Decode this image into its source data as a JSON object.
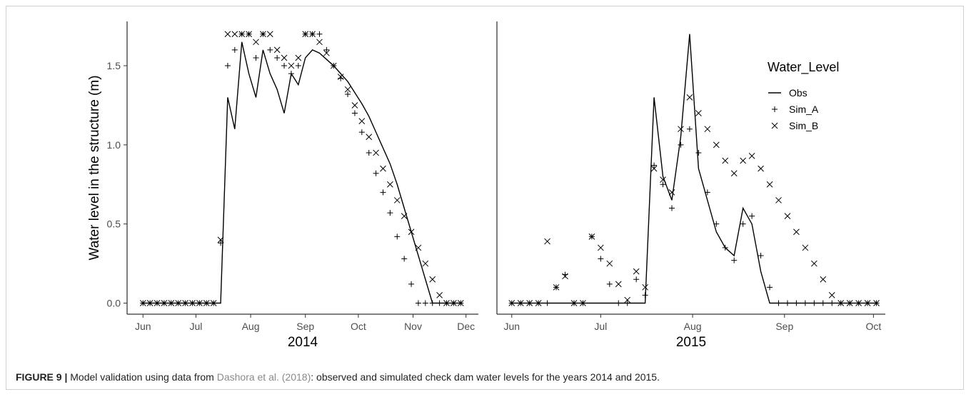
{
  "chart_data": [
    {
      "type": "line",
      "x_label": "2014",
      "y_label": "Water level in the structure (m)",
      "x": [
        152,
        156,
        160,
        164,
        168,
        172,
        176,
        180,
        184,
        188,
        192,
        196,
        200,
        204,
        208,
        212,
        216,
        220,
        224,
        228,
        232,
        236,
        240,
        244,
        248,
        252,
        256,
        260,
        264,
        268,
        272,
        276,
        280,
        284,
        288,
        292,
        296,
        300,
        304,
        308,
        312,
        316,
        320,
        324,
        328,
        332
      ],
      "series": [
        {
          "name": "Obs",
          "color": "#000000",
          "marker": "line",
          "values": [
            0,
            0,
            0,
            0,
            0,
            0,
            0,
            0,
            0,
            0,
            0,
            0,
            1.3,
            1.1,
            1.65,
            1.45,
            1.3,
            1.6,
            1.45,
            1.35,
            1.2,
            1.45,
            1.38,
            1.55,
            1.6,
            1.58,
            1.54,
            1.5,
            1.45,
            1.4,
            1.33,
            1.26,
            1.18,
            1.08,
            0.98,
            0.88,
            0.75,
            0.6,
            0.45,
            0.3,
            0.15,
            0,
            0,
            0,
            0,
            0
          ]
        },
        {
          "name": "Sim_A",
          "color": "#000000",
          "marker": "plus",
          "values": [
            0,
            0,
            0,
            0,
            0,
            0,
            0,
            0,
            0,
            0,
            0,
            0.38,
            1.5,
            1.6,
            1.7,
            1.7,
            1.55,
            1.7,
            1.6,
            1.55,
            1.5,
            1.45,
            1.5,
            1.7,
            1.7,
            1.7,
            1.6,
            1.5,
            1.42,
            1.32,
            1.2,
            1.08,
            0.95,
            0.82,
            0.7,
            0.57,
            0.42,
            0.28,
            0.12,
            0,
            0,
            0,
            0,
            0,
            0,
            0
          ]
        },
        {
          "name": "Sim_B",
          "color": "#000000",
          "marker": "cross",
          "values": [
            0,
            0,
            0,
            0,
            0,
            0,
            0,
            0,
            0,
            0,
            0,
            0.4,
            1.7,
            1.7,
            1.7,
            1.7,
            1.65,
            1.7,
            1.7,
            1.6,
            1.55,
            1.5,
            1.55,
            1.7,
            1.7,
            1.65,
            1.58,
            1.5,
            1.43,
            1.35,
            1.25,
            1.15,
            1.05,
            0.95,
            0.85,
            0.75,
            0.65,
            0.55,
            0.45,
            0.35,
            0.25,
            0.15,
            0.05,
            0,
            0,
            0
          ]
        }
      ],
      "xlim": [
        143,
        342
      ],
      "xticks": [
        {
          "value": 152,
          "label": "Jun"
        },
        {
          "value": 182,
          "label": "Jul"
        },
        {
          "value": 213,
          "label": "Aug"
        },
        {
          "value": 244,
          "label": "Sep"
        },
        {
          "value": 274,
          "label": "Oct"
        },
        {
          "value": 305,
          "label": "Nov"
        },
        {
          "value": 335,
          "label": "Dec"
        }
      ],
      "ylim": [
        -0.07,
        1.78
      ],
      "yticks": [
        {
          "value": 0,
          "label": "0.0"
        },
        {
          "value": 0.5,
          "label": "0.5"
        },
        {
          "value": 1,
          "label": "1.0"
        },
        {
          "value": 1.5,
          "label": "1.5"
        }
      ],
      "grid": false
    },
    {
      "type": "line",
      "x_label": "2015",
      "legend_title": "Water_Level",
      "legend": "top-right",
      "x": [
        152,
        155,
        158,
        161,
        164,
        167,
        170,
        173,
        176,
        179,
        182,
        185,
        188,
        191,
        194,
        197,
        200,
        203,
        206,
        209,
        212,
        215,
        218,
        221,
        224,
        227,
        230,
        233,
        236,
        239,
        242,
        245,
        248,
        251,
        254,
        257,
        260,
        263,
        266,
        269,
        272,
        275
      ],
      "series": [
        {
          "name": "Obs",
          "color": "#000000",
          "marker": "line",
          "values": [
            0,
            0,
            0,
            0,
            0,
            0,
            0,
            0,
            0,
            0,
            0,
            0,
            0,
            0,
            0,
            0,
            1.3,
            0.8,
            0.65,
            1.05,
            1.7,
            0.85,
            0.65,
            0.45,
            0.35,
            0.3,
            0.6,
            0.5,
            0.2,
            0,
            0,
            0,
            0,
            0,
            0,
            0,
            0,
            0,
            0,
            0,
            0,
            0
          ]
        },
        {
          "name": "Sim_A",
          "color": "#000000",
          "marker": "plus",
          "values": [
            0,
            0,
            0,
            0,
            0,
            0.1,
            0.18,
            0,
            0,
            0.42,
            0.28,
            0.12,
            0,
            0,
            0.15,
            0.05,
            0.87,
            0.75,
            0.6,
            1.0,
            1.1,
            0.95,
            0.7,
            0.5,
            0.35,
            0.27,
            0.5,
            0.55,
            0.3,
            0.1,
            0,
            0,
            0,
            0,
            0,
            0,
            0,
            0,
            0,
            0,
            0,
            0
          ]
        },
        {
          "name": "Sim_B",
          "color": "#000000",
          "marker": "cross",
          "values": [
            0,
            0,
            0,
            0,
            0.39,
            0.1,
            0.17,
            0,
            0,
            0.42,
            0.35,
            0.25,
            0.12,
            0.02,
            0.2,
            0.1,
            0.85,
            0.78,
            0.7,
            1.1,
            1.3,
            1.2,
            1.1,
            1.0,
            0.9,
            0.82,
            0.9,
            0.93,
            0.85,
            0.75,
            0.65,
            0.55,
            0.45,
            0.35,
            0.25,
            0.15,
            0.05,
            0,
            0,
            0,
            0,
            0
          ]
        }
      ],
      "xlim": [
        147,
        278
      ],
      "xticks": [
        {
          "value": 152,
          "label": "Jun"
        },
        {
          "value": 182,
          "label": "Jul"
        },
        {
          "value": 213,
          "label": "Aug"
        },
        {
          "value": 244,
          "label": "Sep"
        },
        {
          "value": 274,
          "label": "Oct"
        }
      ],
      "ylim": [
        -0.07,
        1.78
      ],
      "grid": false
    }
  ],
  "caption": {
    "label": "FIGURE 9 |",
    "before": "Model validation using data from",
    "link": "Dashora et al. (2018)",
    "after": ": observed and simulated check dam water levels for the years 2014 and 2015."
  }
}
